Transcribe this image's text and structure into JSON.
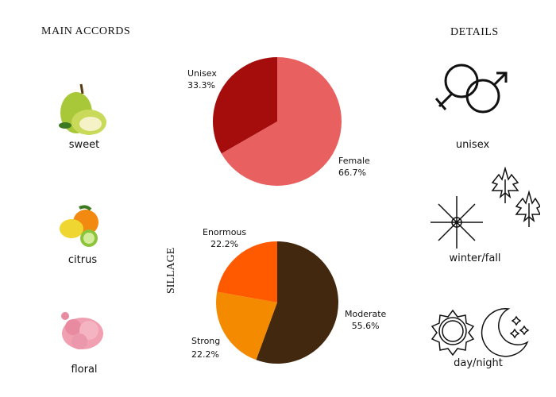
{
  "headings": {
    "main_accords": "MAIN ACCORDS",
    "details": "DETAILS"
  },
  "accords": [
    {
      "label": "sweet",
      "icon": "pear-icon"
    },
    {
      "label": "citrus",
      "icon": "citrus-icon"
    },
    {
      "label": "floral",
      "icon": "carnation-icon"
    }
  ],
  "details": [
    {
      "label": "unisex",
      "icon": "gender-icon"
    },
    {
      "label": "winter/fall",
      "icon": "snowflake-leaves-icon"
    },
    {
      "label": "day/night",
      "icon": "sun-moon-icon"
    }
  ],
  "chart_data": [
    {
      "type": "pie",
      "title": "",
      "series": [
        {
          "name": "Female",
          "value": 66.7,
          "label": "66.7%",
          "color": "#e86060"
        },
        {
          "name": "Unisex",
          "value": 33.3,
          "label": "33.3%",
          "color": "#a50d0d"
        }
      ]
    },
    {
      "type": "pie",
      "title": "SILLAGE",
      "series": [
        {
          "name": "Moderate",
          "value": 55.6,
          "label": "55.6%",
          "color": "#42280f"
        },
        {
          "name": "Strong",
          "value": 22.2,
          "label": "22.2%",
          "color": "#f48a00"
        },
        {
          "name": "Enormous",
          "value": 22.2,
          "label": "22.2%",
          "color": "#ff5a00"
        }
      ]
    }
  ]
}
